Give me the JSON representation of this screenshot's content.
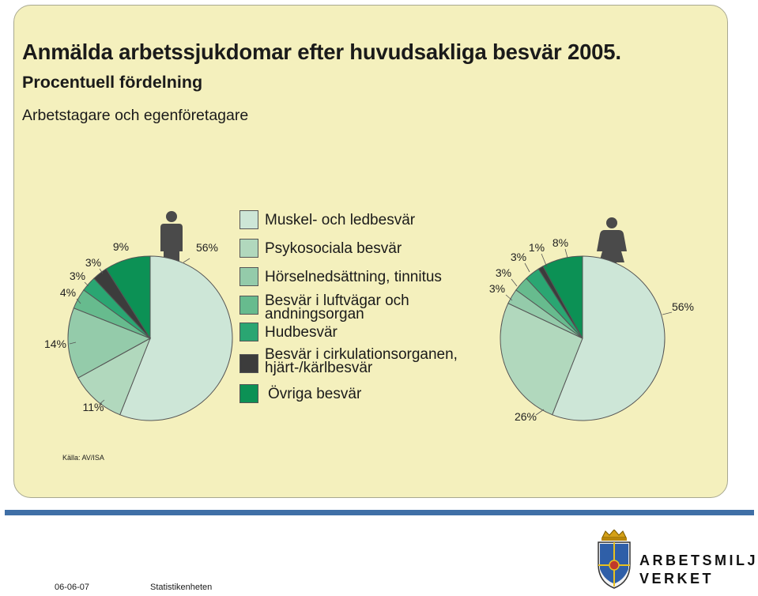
{
  "header": {
    "title": "Anmälda arbetssjukdomar efter huvudsakliga besvär 2005.",
    "subtitle": "Procentuell fördelning",
    "population": "Arbetstagare och egenföretagare"
  },
  "source": "Källa: AV/ISA",
  "legend": [
    {
      "label": "Muskel- och ledbesvär",
      "color": "#cde6d7"
    },
    {
      "label": "Psykosociala besvär",
      "color": "#b1d8bd"
    },
    {
      "label": "Hörselnedsättning, tinnitus",
      "color": "#94cbaa"
    },
    {
      "label": "Besvär i luftvägar och andningsorgan",
      "color": "#67bb8e"
    },
    {
      "label": "Hudbesvär",
      "color": "#2aa672"
    },
    {
      "label": "Besvär i cirkulationsorganen, hjärt-/kärlbesvär",
      "color": "#3c3c3c"
    },
    {
      "label": "Övriga besvär",
      "color": "#0c9155"
    }
  ],
  "chart_data": [
    {
      "type": "pie",
      "name": "men",
      "icon": "male-icon",
      "categories": [
        "Muskel- och ledbesvär",
        "Psykosociala besvär",
        "Hörselnedsättning, tinnitus",
        "Besvär i luftvägar och andningsorgan",
        "Hudbesvär",
        "Besvär i cirkulationsorganen, hjärt-/kärlbesvär",
        "Övriga besvär"
      ],
      "values": [
        56,
        11,
        14,
        4,
        3,
        3,
        9
      ],
      "labels": [
        "56%",
        "11%",
        "14%",
        "4%",
        "3%",
        "3%",
        "9%"
      ]
    },
    {
      "type": "pie",
      "name": "women",
      "icon": "female-icon",
      "categories": [
        "Muskel- och ledbesvär",
        "Psykosociala besvär",
        "Hörselnedsättning, tinnitus",
        "Besvär i luftvägar och andningsorgan",
        "Hudbesvär",
        "Besvär i cirkulationsorganen, hjärt-/kärlbesvär",
        "Övriga besvär"
      ],
      "values": [
        56,
        26,
        3,
        3,
        3,
        1,
        8
      ],
      "labels": [
        "56%",
        "26%",
        "3%",
        "3%",
        "3%",
        "1%",
        "8%"
      ]
    }
  ],
  "footer": {
    "date": "06-06-07",
    "unit": "Statistikenheten",
    "logo_line1": "ARBETSMILJÖ",
    "logo_line2": "VERKET"
  }
}
